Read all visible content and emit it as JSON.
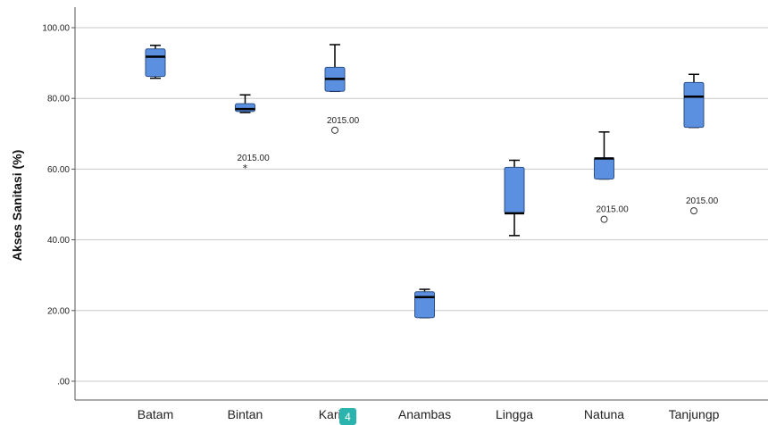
{
  "chart_data": {
    "type": "boxplot",
    "ylabel": "Akses Sanitasi (%)",
    "xlabel": "",
    "ylim": [
      -5,
      106
    ],
    "yticks": [
      0,
      20,
      40,
      60,
      80,
      100
    ],
    "ytick_labels": [
      ".00",
      "20.00",
      "40.00",
      "60.00",
      "80.00",
      "100.00"
    ],
    "grid": true,
    "categories": [
      "Batam",
      "Bintan",
      "Karimun",
      "Anambas",
      "Lingga",
      "Natuna",
      "Tanjungp"
    ],
    "category_labels": [
      "Batam",
      "Bintan",
      "Karim",
      "Anambas",
      "Lingga",
      "Natuna",
      "Tanjungp"
    ],
    "boxes": [
      {
        "category": "Batam",
        "min": 85.7,
        "q1": 86.2,
        "median": 91.8,
        "q3": 94.0,
        "max": 95.0,
        "outliers": []
      },
      {
        "category": "Bintan",
        "min": 76.0,
        "q1": 76.3,
        "median": 77.0,
        "q3": 78.5,
        "max": 81.0,
        "outliers": [
          {
            "value": 60.3,
            "label": "2015.00",
            "marker": "star"
          }
        ]
      },
      {
        "category": "Karimun",
        "min": 82.0,
        "q1": 82.0,
        "median": 85.5,
        "q3": 88.8,
        "max": 95.2,
        "outliers": [
          {
            "value": 71.0,
            "label": "2015.00",
            "marker": "circle"
          }
        ]
      },
      {
        "category": "Anambas",
        "min": 18.0,
        "q1": 18.0,
        "median": 23.8,
        "q3": 25.3,
        "max": 26.0,
        "outliers": []
      },
      {
        "category": "Lingga",
        "min": 41.2,
        "q1": 47.5,
        "median": 47.5,
        "q3": 60.5,
        "max": 62.5,
        "outliers": []
      },
      {
        "category": "Natuna",
        "min": 57.2,
        "q1": 57.2,
        "median": 63.0,
        "q3": 63.2,
        "max": 70.5,
        "outliers": [
          {
            "value": 45.8,
            "label": "2015.00",
            "marker": "circle"
          }
        ]
      },
      {
        "category": "Tanjungp",
        "min": 71.8,
        "q1": 71.8,
        "median": 80.5,
        "q3": 84.5,
        "max": 86.8,
        "outliers": [
          {
            "value": 48.2,
            "label": "2015.00",
            "marker": "circle"
          }
        ]
      }
    ],
    "colors": {
      "box": "#5b8fe0",
      "box_stroke": "#2c4f86",
      "median": "#000000",
      "grid": "#c8c8c8"
    }
  },
  "badge": {
    "text": "4"
  }
}
